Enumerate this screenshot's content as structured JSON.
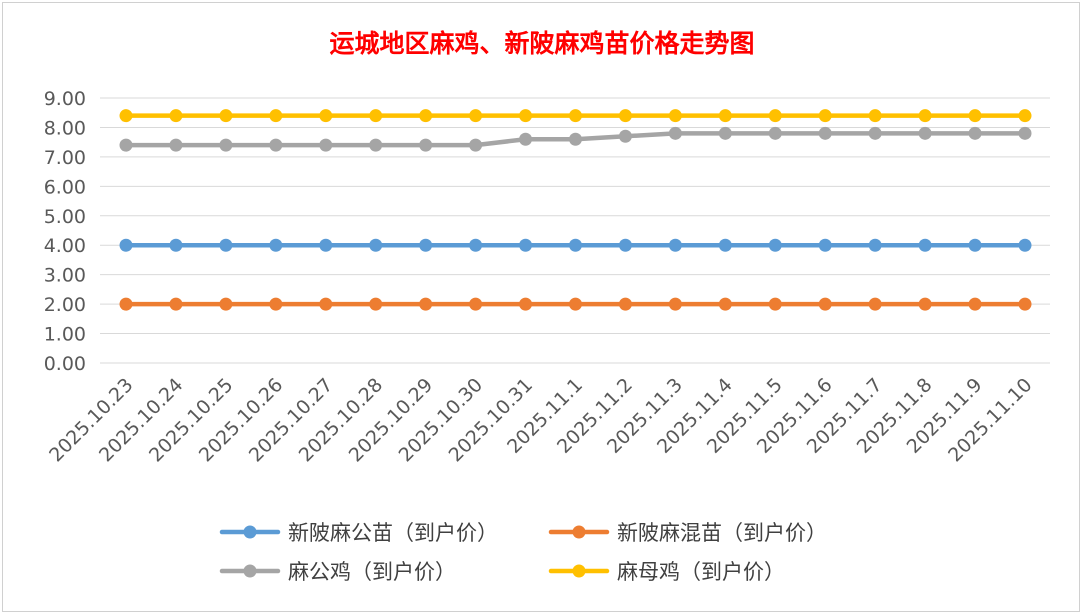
{
  "chart_data": {
    "type": "line",
    "title": "运城地区麻鸡、新陂麻鸡苗价格走势图",
    "title_color": "#ff0000",
    "categories": [
      "2025.10.23",
      "2025.10.24",
      "2025.10.25",
      "2025.10.26",
      "2025.10.27",
      "2025.10.28",
      "2025.10.29",
      "2025.10.30",
      "2025.10.31",
      "2025.11.1",
      "2025.11.2",
      "2025.11.3",
      "2025.11.4",
      "2025.11.5",
      "2025.11.6",
      "2025.11.7",
      "2025.11.8",
      "2025.11.9",
      "2025.11.10"
    ],
    "series": [
      {
        "name": "新陂麻公苗（到户价）",
        "color": "#5b9bd5",
        "values": [
          4,
          4,
          4,
          4,
          4,
          4,
          4,
          4,
          4,
          4,
          4,
          4,
          4,
          4,
          4,
          4,
          4,
          4,
          4
        ]
      },
      {
        "name": "新陂麻混苗（到户价）",
        "color": "#ed7d31",
        "values": [
          2,
          2,
          2,
          2,
          2,
          2,
          2,
          2,
          2,
          2,
          2,
          2,
          2,
          2,
          2,
          2,
          2,
          2,
          2
        ]
      },
      {
        "name": "麻公鸡（到户价）",
        "color": "#a5a5a5",
        "values": [
          7.4,
          7.4,
          7.4,
          7.4,
          7.4,
          7.4,
          7.4,
          7.4,
          7.6,
          7.6,
          7.7,
          7.8,
          7.8,
          7.8,
          7.8,
          7.8,
          7.8,
          7.8,
          7.8
        ]
      },
      {
        "name": "麻母鸡（到户价）",
        "color": "#ffc000",
        "values": [
          8.4,
          8.4,
          8.4,
          8.4,
          8.4,
          8.4,
          8.4,
          8.4,
          8.4,
          8.4,
          8.4,
          8.4,
          8.4,
          8.4,
          8.4,
          8.4,
          8.4,
          8.4,
          8.4
        ]
      }
    ],
    "ylim": [
      0,
      9
    ],
    "yticks": [
      "0.00",
      "1.00",
      "2.00",
      "3.00",
      "4.00",
      "5.00",
      "6.00",
      "7.00",
      "8.00",
      "9.00"
    ],
    "grid": true,
    "legend_position": "bottom"
  }
}
